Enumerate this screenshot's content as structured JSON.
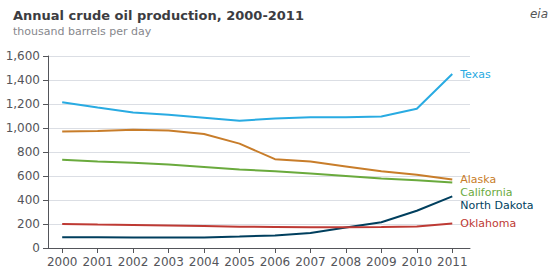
{
  "chart_data": {
    "type": "line",
    "title": "Annual crude oil production, 2000-2011",
    "subtitle": "thousand barrels per day",
    "annotations": [
      "eia"
    ],
    "x": [
      2000,
      2001,
      2002,
      2003,
      2004,
      2005,
      2006,
      2007,
      2008,
      2009,
      2010,
      2011
    ],
    "series": [
      {
        "name": "Texas",
        "color": "#29ABE2",
        "values": [
          1215,
          1170,
          1130,
          1110,
          1085,
          1060,
          1080,
          1090,
          1090,
          1095,
          1160,
          1450
        ]
      },
      {
        "name": "Alaska",
        "color": "#C87D2A",
        "values": [
          970,
          975,
          985,
          980,
          950,
          870,
          740,
          720,
          680,
          640,
          610,
          570
        ]
      },
      {
        "name": "California",
        "color": "#6AAA3D",
        "values": [
          735,
          720,
          710,
          695,
          675,
          655,
          640,
          620,
          600,
          580,
          565,
          545
        ]
      },
      {
        "name": "North Dakota",
        "color": "#003F5E",
        "values": [
          90,
          90,
          88,
          87,
          88,
          95,
          105,
          125,
          170,
          215,
          310,
          430
        ]
      },
      {
        "name": "Oklahoma",
        "color": "#BE3A34",
        "values": [
          200,
          195,
          192,
          188,
          183,
          178,
          175,
          172,
          172,
          175,
          180,
          205
        ]
      }
    ],
    "xlim": [
      1999.6,
      2011.5
    ],
    "xticks": [
      2000,
      2001,
      2002,
      2003,
      2004,
      2005,
      2006,
      2007,
      2008,
      2009,
      2010,
      2011
    ],
    "ylim": [
      0,
      1600
    ],
    "yticks": [
      0,
      200,
      400,
      600,
      800,
      {
        "value": 1000,
        "label": "1,000"
      },
      {
        "value": 1200,
        "label": "1,200"
      },
      {
        "value": 1400,
        "label": "1,400"
      },
      {
        "value": 1600,
        "label": "1,600"
      }
    ],
    "grid": "y"
  }
}
